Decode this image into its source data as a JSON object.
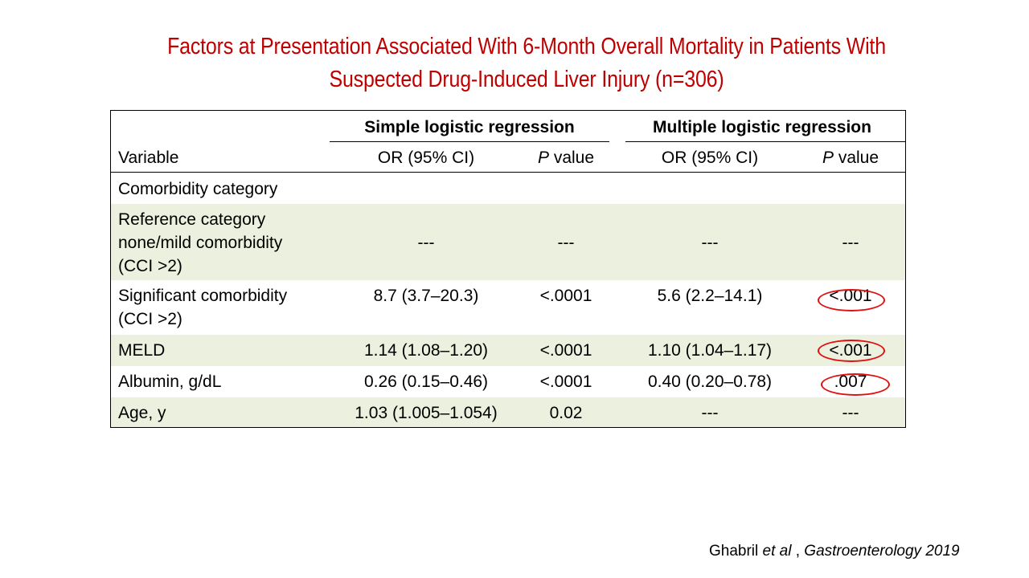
{
  "title": {
    "line1": "Factors at Presentation Associated With 6-Month Overall Mortality in Patients With",
    "line2": "Suspected Drug-Induced Liver Injury (n=306)"
  },
  "table": {
    "group_headers": {
      "simple": "Simple logistic regression",
      "multiple": "Multiple logistic regression"
    },
    "columns": {
      "variable": "Variable",
      "or_simple": "OR (95% CI)",
      "p_simple_italic": "P",
      "p_simple_rest": " value",
      "or_multiple": "OR (95% CI)",
      "p_multiple_italic": "P",
      "p_multiple_rest": " value"
    },
    "rows": [
      {
        "variable": "Comorbidity category",
        "or_simple": "",
        "p_simple": "",
        "or_multiple": "",
        "p_multiple": ""
      },
      {
        "variable_lines": [
          "Reference category",
          "none/mild comorbidity",
          "(CCI >2)"
        ],
        "or_simple": "---",
        "p_simple": "---",
        "or_multiple": "---",
        "p_multiple": "---"
      },
      {
        "variable_lines": [
          "Significant comorbidity",
          "(CCI >2)"
        ],
        "or_simple": "8.7 (3.7–20.3)",
        "p_simple": "<.0001",
        "or_multiple": "5.6 (2.2–14.1)",
        "p_multiple": "<.001"
      },
      {
        "variable": "MELD",
        "or_simple": "1.14 (1.08–1.20)",
        "p_simple": "<.0001",
        "or_multiple": "1.10 (1.04–1.17)",
        "p_multiple": "<.001"
      },
      {
        "variable": "Albumin, g/dL",
        "or_simple": "0.26 (0.15–0.46)",
        "p_simple": "<.0001",
        "or_multiple": "0.40 (0.20–0.78)",
        "p_multiple": ".007"
      },
      {
        "variable": "Age, y",
        "or_simple": "1.03 (1.005–1.054)",
        "p_simple": "0.02",
        "or_multiple": "---",
        "p_multiple": "---"
      }
    ]
  },
  "citation": {
    "author": "Ghabril ",
    "etal": "et al",
    "sep": " , ",
    "journal": "Gastroenterology 2019"
  },
  "colors": {
    "title": "#c00000",
    "row_shade": "#ebf1de",
    "highlight_oval": "#e01010"
  }
}
